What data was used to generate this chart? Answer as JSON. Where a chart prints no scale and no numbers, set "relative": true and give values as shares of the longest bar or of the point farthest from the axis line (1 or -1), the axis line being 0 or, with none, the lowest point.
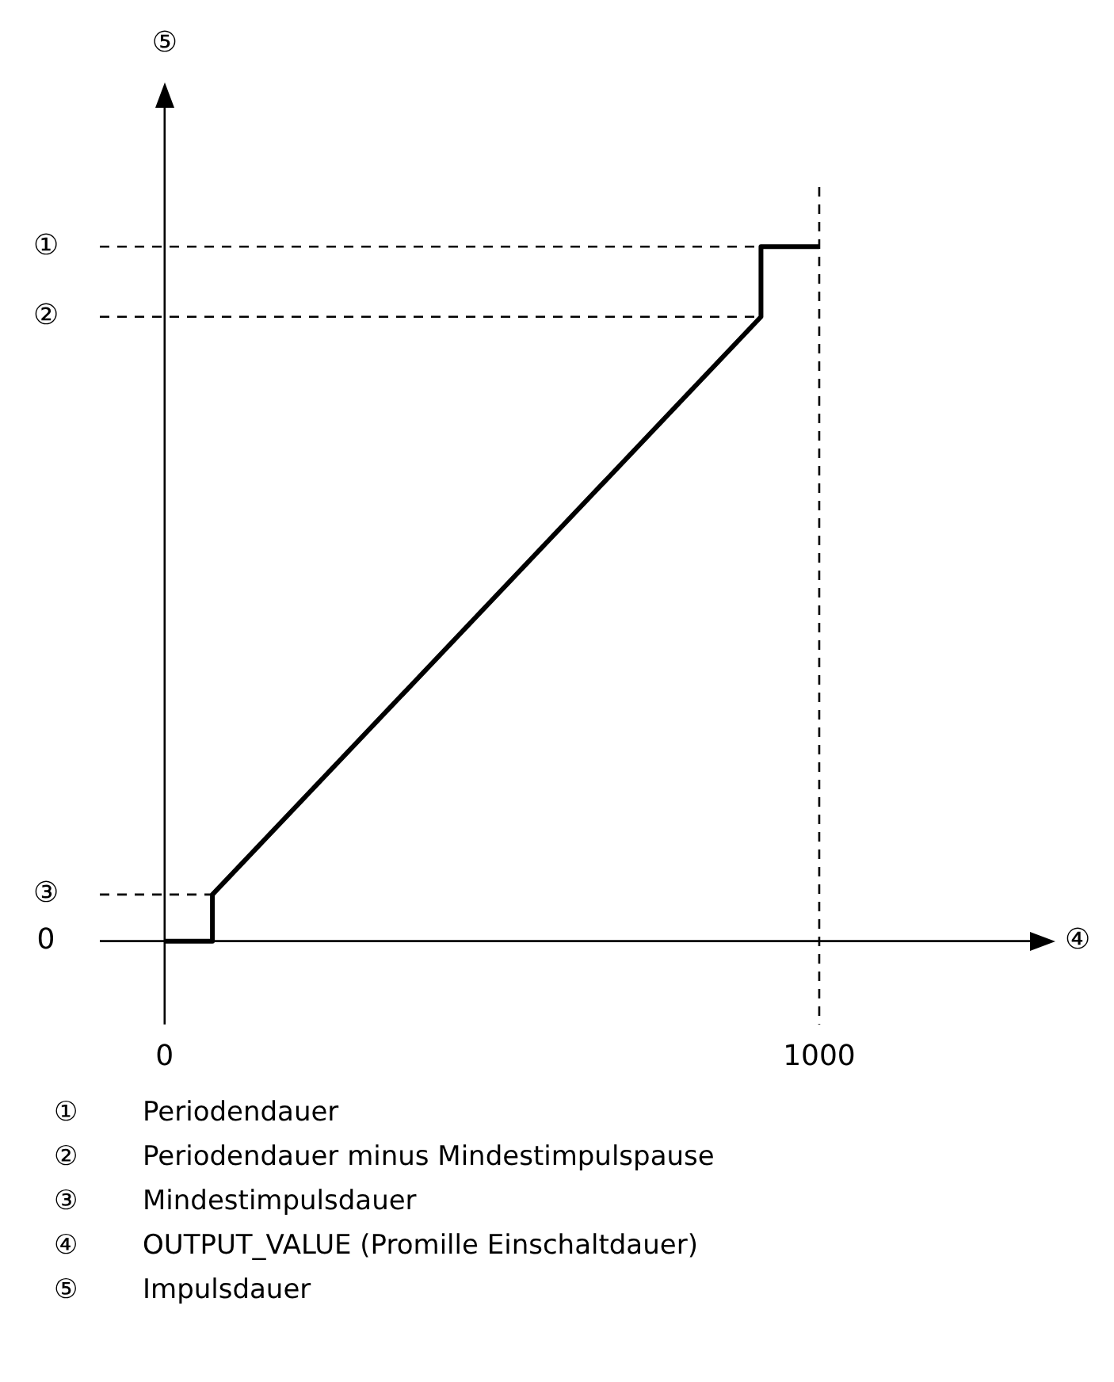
{
  "chart_data": {
    "type": "line",
    "relative": true,
    "xlabel": "④",
    "x": [
      0,
      73,
      73,
      911,
      911,
      1000
    ],
    "series": [
      {
        "color": "#000000",
        "values": [
          0,
          0,
          0.067,
          0.899,
          1,
          1
        ]
      }
    ],
    "xlim": [
      -99,
      1322
    ],
    "xticks": [
      0,
      1000
    ],
    "ref_lines": [
      {
        "axis": "y",
        "value": 1,
        "label": "①",
        "line_style": "dashed"
      },
      {
        "axis": "y",
        "value": 0.899,
        "label": "②",
        "line_style": "dashed"
      },
      {
        "axis": "y",
        "value": 0.067,
        "label": "③",
        "line_style": "dashed"
      },
      {
        "axis": "x",
        "value": 1000,
        "line_style": "dashed"
      }
    ],
    "annotations": [
      "0",
      "⑤",
      "① Periodendauer",
      "② Periodendauer minus Mindestimpulspause",
      "③ Mindestimpulsdauer",
      "④ OUTPUT_VALUE (Promille Einschaltdauer)",
      "⑤ Impulsdauer"
    ],
    "marker": "none",
    "line_style": "solid",
    "grid": false,
    "legend": false
  }
}
